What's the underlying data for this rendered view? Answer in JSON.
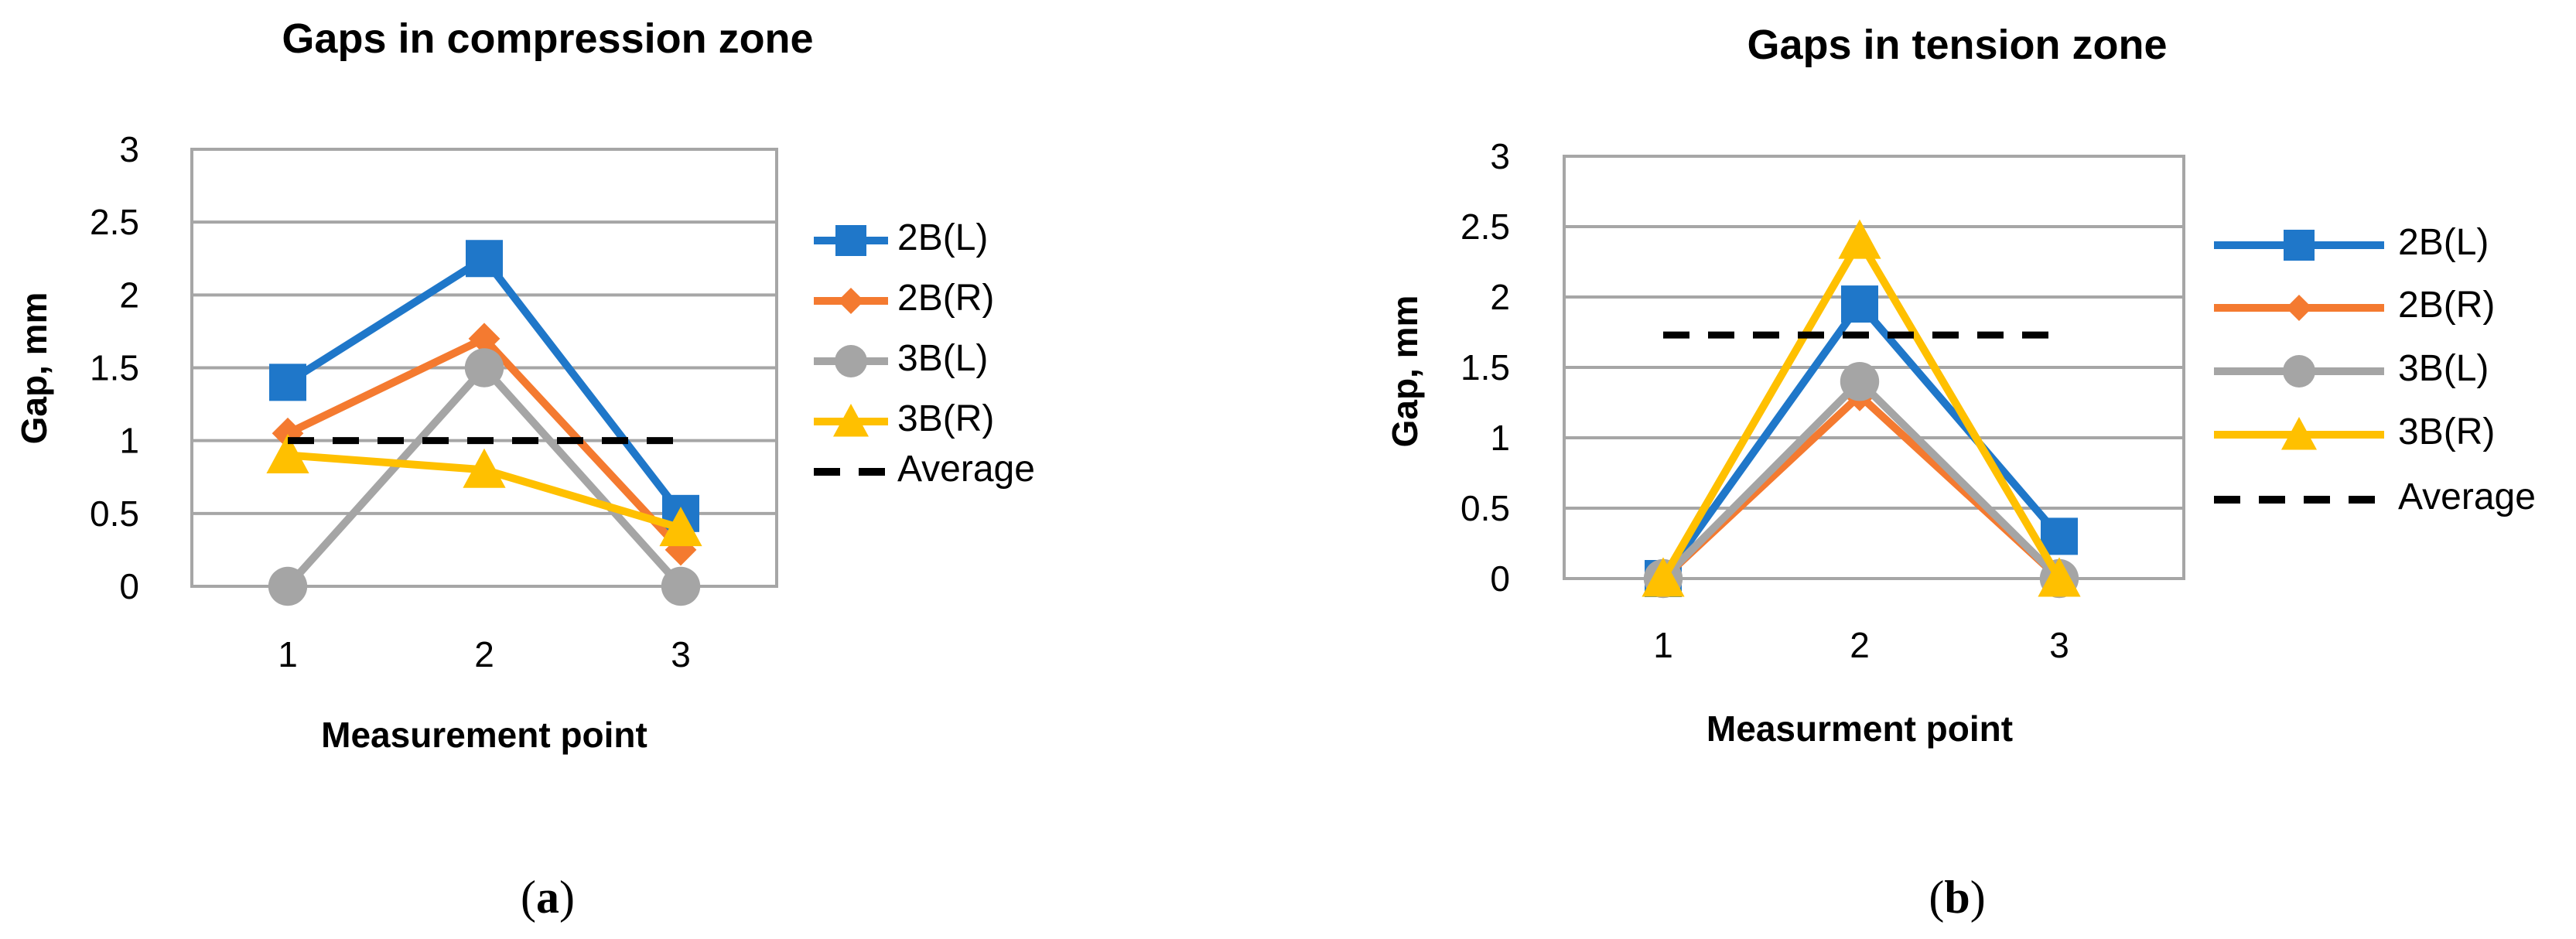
{
  "chart_data": [
    {
      "type": "line",
      "title": "Gaps in compression zone",
      "xlabel": "Measurement point",
      "ylabel": "Gap, mm",
      "categories": [
        "1",
        "2",
        "3"
      ],
      "yticks": [
        "0",
        "0.5",
        "1",
        "1.5",
        "2",
        "2.5",
        "3"
      ],
      "ylim": [
        0,
        3
      ],
      "grid": true,
      "legend_position": "right",
      "series": [
        {
          "name": "2B(L)",
          "values": [
            1.4,
            2.25,
            0.5
          ],
          "color": "#1F77C9",
          "marker": "square"
        },
        {
          "name": "2B(R)",
          "values": [
            1.05,
            1.7,
            0.25
          ],
          "color": "#F47A30",
          "marker": "diamond"
        },
        {
          "name": "3B(L)",
          "values": [
            0,
            1.5,
            0
          ],
          "color": "#A5A5A5",
          "marker": "circle"
        },
        {
          "name": "3B(R)",
          "values": [
            0.9,
            0.8,
            0.4
          ],
          "color": "#FFC000",
          "marker": "triangle"
        },
        {
          "name": "Average",
          "values": [
            1,
            1,
            1
          ],
          "color": "#000000",
          "marker": "none",
          "dashed": true
        }
      ],
      "caption": {
        "open": "(",
        "letter": "a",
        "close": ")"
      }
    },
    {
      "type": "line",
      "title": "Gaps in tension zone",
      "xlabel": "Measurment point",
      "ylabel": "Gap, mm",
      "categories": [
        "1",
        "2",
        "3"
      ],
      "yticks": [
        "0",
        "0.5",
        "1",
        "1.5",
        "2",
        "2.5",
        "3"
      ],
      "ylim": [
        0,
        3
      ],
      "grid": true,
      "legend_position": "right",
      "series": [
        {
          "name": "2B(L)",
          "values": [
            0,
            1.95,
            0.3
          ],
          "color": "#1F77C9",
          "marker": "square"
        },
        {
          "name": "2B(R)",
          "values": [
            0,
            1.3,
            0
          ],
          "color": "#F47A30",
          "marker": "diamond"
        },
        {
          "name": "3B(L)",
          "values": [
            0,
            1.4,
            0
          ],
          "color": "#A5A5A5",
          "marker": "circle"
        },
        {
          "name": "3B(R)",
          "values": [
            0,
            2.4,
            0
          ],
          "color": "#FFC000",
          "marker": "triangle"
        },
        {
          "name": "Average",
          "values": [
            1.73,
            1.73,
            1.73
          ],
          "color": "#000000",
          "marker": "none",
          "dashed": true
        }
      ],
      "caption": {
        "open": "(",
        "letter": "b",
        "close": ")"
      }
    }
  ]
}
